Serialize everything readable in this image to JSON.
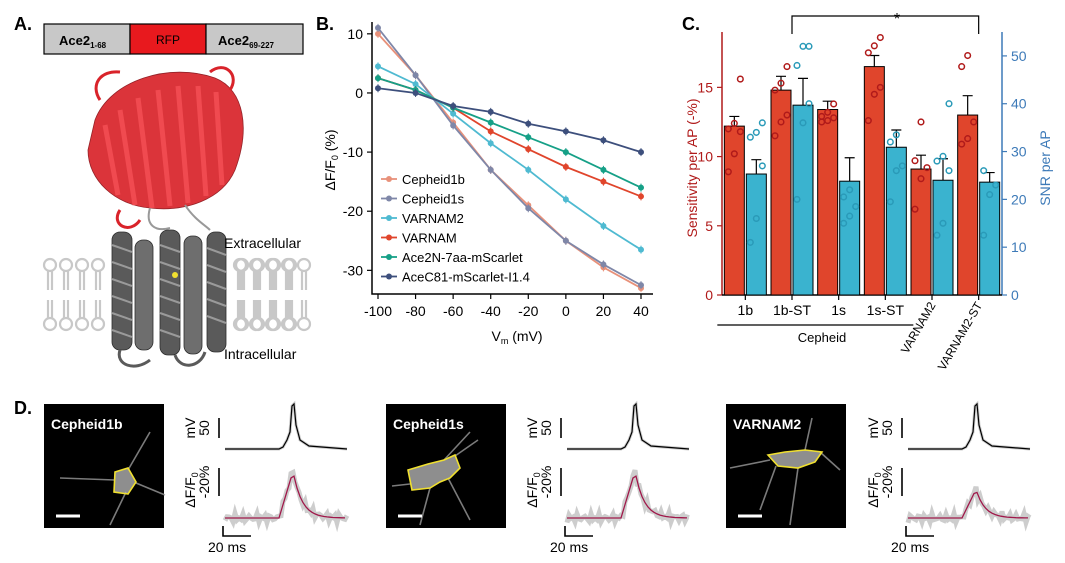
{
  "panels": {
    "a": {
      "letter": "A.",
      "construct": [
        "Ace2",
        "1-68",
        "RFP",
        "Ace2",
        "69-227"
      ],
      "extracellular": "Extracellular",
      "intracellular": "Intracellular",
      "colors": {
        "rfp": "#e8191e",
        "ace2": "#c8c8c8",
        "protein_red": "#d9232a",
        "protein_gray": "#5a5a5a",
        "membrane": "#c8c8c8"
      }
    },
    "b": {
      "letter": "B."
    },
    "c": {
      "letter": "C.",
      "significance": "*",
      "group_label": "Cepheid"
    },
    "d": {
      "letter": "D.",
      "cells": [
        {
          "name": "Cepheid1b",
          "peak": 0.9
        },
        {
          "name": "Cepheid1s",
          "peak": 0.9
        },
        {
          "name": "VARNAM2",
          "peak": 0.55
        }
      ],
      "scale_mv": "50",
      "scale_mv_unit": "mV",
      "scale_df": "-20%",
      "scale_df_unit": "ΔF/F",
      "scale_df_sub": "0",
      "scale_ms": "20 ms",
      "colors": {
        "trace_mean": "#a0184a",
        "trace_trials": "#c8c8c8",
        "roi": "#f0e030"
      }
    }
  },
  "chart_data": [
    {
      "type": "line",
      "x": [
        -100,
        -80,
        -60,
        -40,
        -20,
        0,
        20,
        40
      ],
      "xlabel": "V",
      "xlabel_sub": "m",
      "xlabel_unit": " (mV)",
      "ylabel": "ΔF/F",
      "ylabel_sub": "0",
      "ylabel_unit": " (%)",
      "xlim": [
        -100,
        40
      ],
      "ylim": [
        -34,
        12
      ],
      "xticks": [
        "-100",
        "-80",
        "-60",
        "-40",
        "-20",
        "0",
        "20",
        "40"
      ],
      "yticks": [
        "10",
        "0",
        "-10",
        "-20",
        "-30"
      ],
      "legend_position": "bottom-left",
      "series": [
        {
          "name": "Cepheid1b",
          "color": "#e8917a",
          "values": [
            10,
            3,
            -5,
            -13,
            -19,
            -25,
            -29.5,
            -33
          ]
        },
        {
          "name": "Cepheid1s",
          "color": "#7f87a8",
          "values": [
            11,
            3,
            -5.5,
            -13,
            -19.5,
            -25,
            -29,
            -32.5
          ]
        },
        {
          "name": "VARNAM2",
          "color": "#4fbad1",
          "values": [
            4.5,
            1.5,
            -3.5,
            -8.5,
            -13,
            -18,
            -22.5,
            -26.5
          ]
        },
        {
          "name": "VARNAM",
          "color": "#e0452c",
          "values": [
            2.5,
            0.5,
            -2.5,
            -6.5,
            -9.5,
            -12.5,
            -15,
            -17.5
          ]
        },
        {
          "name": "Ace2N-7aa-mScarlet",
          "color": "#16a087",
          "values": [
            2.5,
            0.5,
            -2.5,
            -5,
            -7.5,
            -10,
            -13,
            -16
          ]
        },
        {
          "name": "AceC81-mScarlet-I1.4",
          "color": "#3d4f7c",
          "values": [
            0.8,
            0,
            -2.2,
            -3.2,
            -5.2,
            -6.5,
            -8,
            -10
          ]
        }
      ]
    },
    {
      "type": "bar",
      "categories": [
        "1b",
        "1b-ST",
        "1s",
        "1s-ST",
        "VARNAM2",
        "VARNAM2-ST"
      ],
      "ylabel_left": "Sensitivity per AP (-%)",
      "ylabel_right": "SNR per AP",
      "ylim_left": [
        0,
        19
      ],
      "ylim_right": [
        0,
        55
      ],
      "yticks_left": [
        "0",
        "5",
        "10",
        "15"
      ],
      "yticks_right": [
        "0",
        "10",
        "20",
        "30",
        "40",
        "50"
      ],
      "significance": "*",
      "series": [
        {
          "name": "Sensitivity per AP (-%)",
          "axis": "left",
          "color": "#e0452c",
          "values": [
            12.2,
            14.8,
            13.4,
            16.5,
            9.1,
            13.0
          ],
          "errors": [
            0.7,
            1.0,
            0.6,
            0.8,
            1.0,
            1.4
          ],
          "points": [
            [
              8.9,
              10.2,
              11.8,
              12.0,
              12.4,
              15.6
            ],
            [
              11.5,
              12.5,
              13.0,
              14.8,
              15.3,
              16.5
            ],
            [
              12.5,
              12.6,
              12.8,
              12.9,
              13.2,
              13.8
            ],
            [
              12.6,
              14.5,
              15.0,
              17.5,
              18.0,
              18.6
            ],
            [
              6.2,
              8.4,
              9.2,
              9.7,
              12.5
            ],
            [
              10.9,
              11.3,
              12.5,
              16.5,
              17.3
            ]
          ]
        },
        {
          "name": "SNR per AP",
          "axis": "right",
          "color": "#3ab3cf",
          "values": [
            25.3,
            39.7,
            23.8,
            30.9,
            24.0,
            23.6
          ],
          "errors": [
            3.0,
            5.6,
            4.9,
            3.6,
            4.5,
            2.0
          ],
          "points": [
            [
              11,
              16,
              27,
              33,
              34,
              36
            ],
            [
              20,
              36,
              40,
              48,
              52,
              52
            ],
            [
              15,
              16.5,
              18.5,
              20.5,
              22
            ],
            [
              19.5,
              26,
              27,
              32,
              33.5
            ],
            [
              12.5,
              15,
              26,
              28,
              29,
              40
            ],
            [
              12.5,
              21,
              23,
              26
            ]
          ]
        }
      ]
    }
  ]
}
